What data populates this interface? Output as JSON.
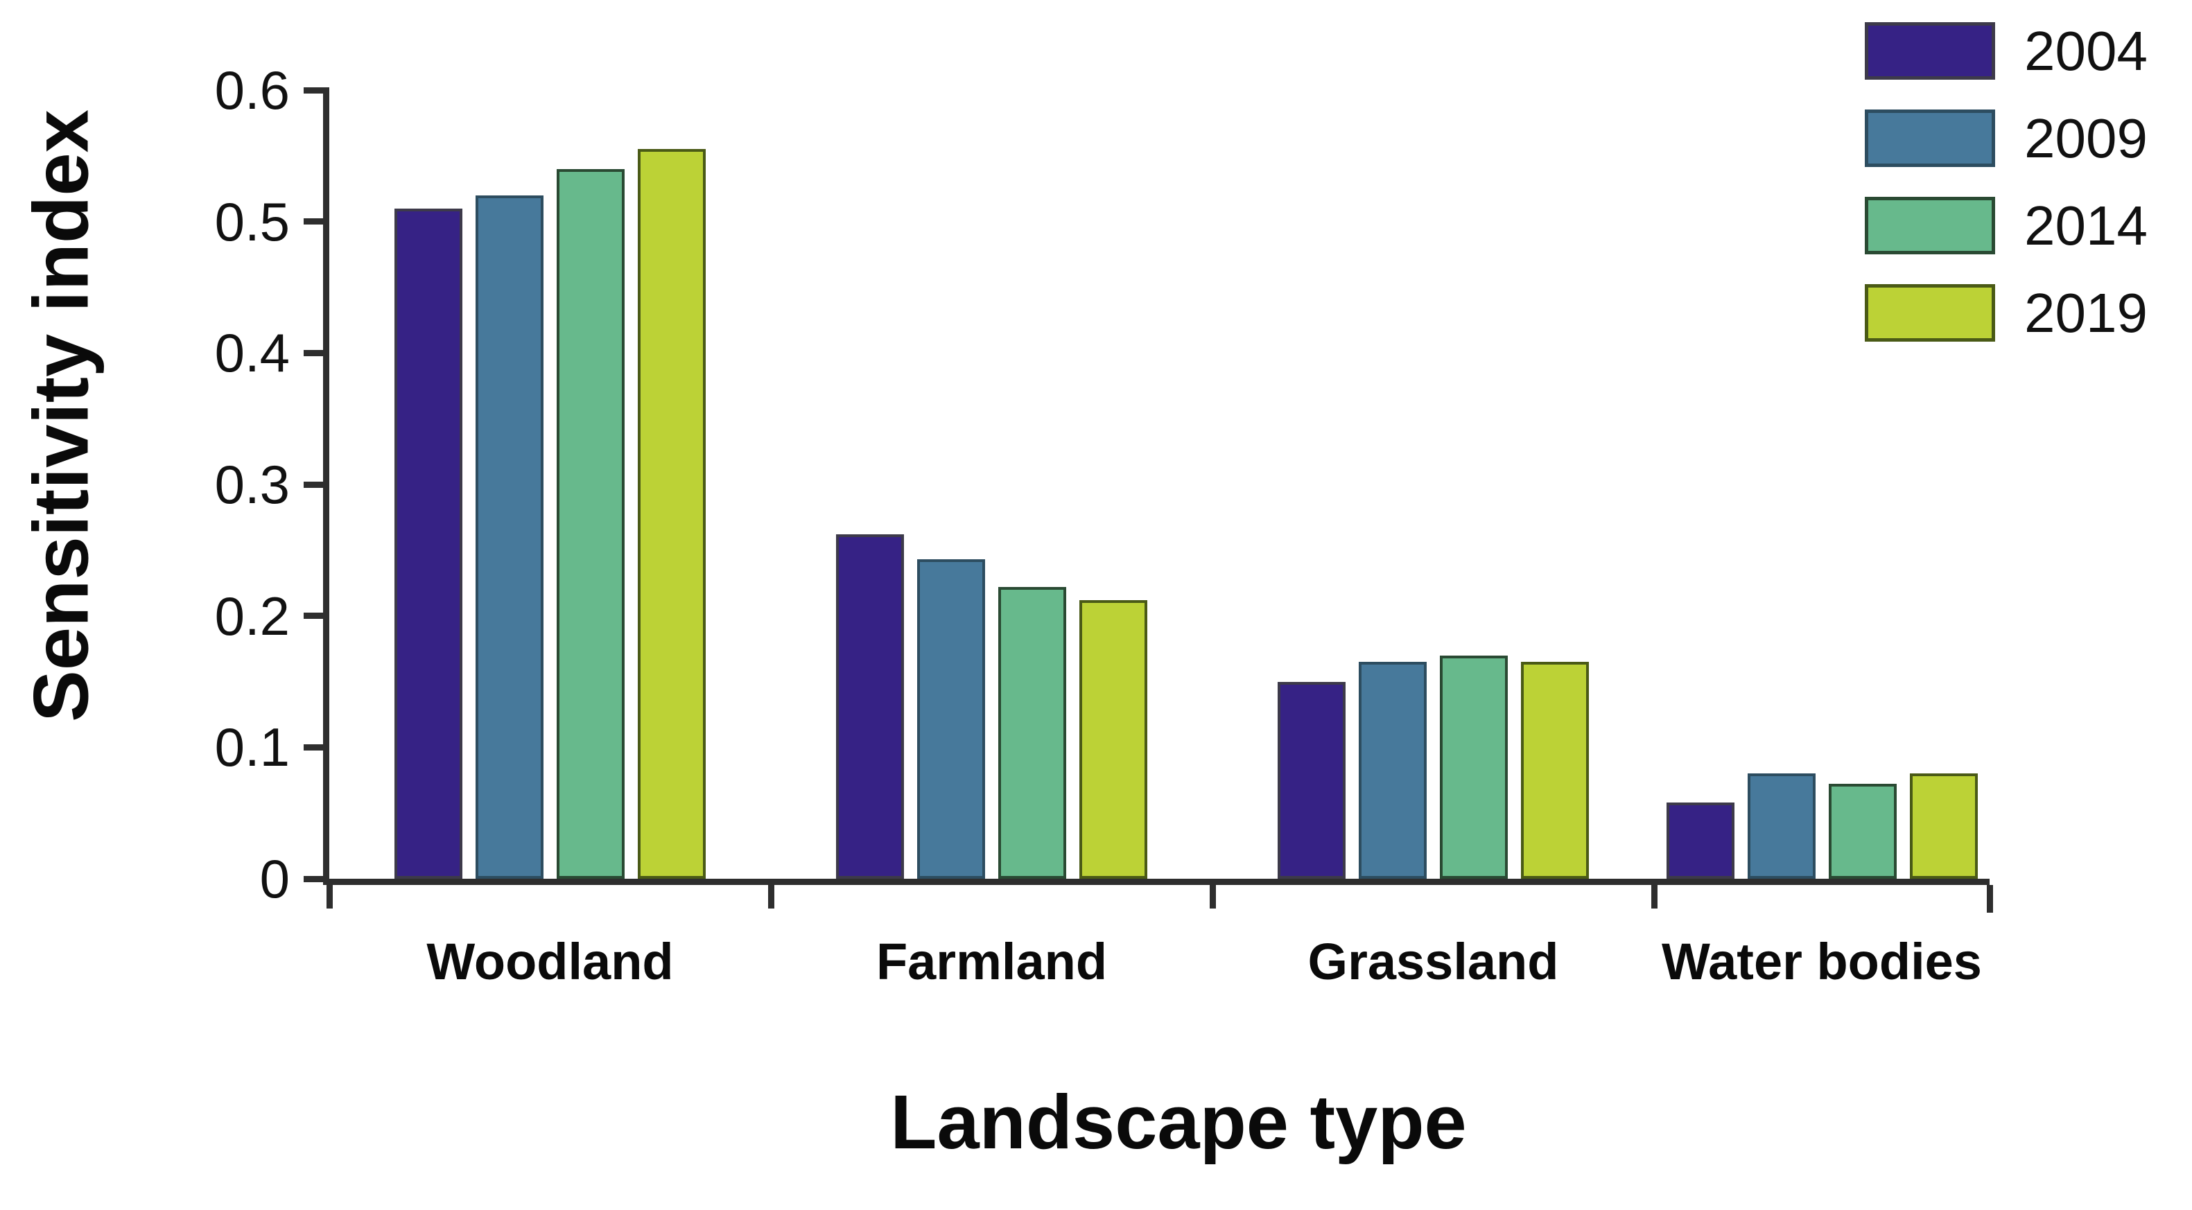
{
  "chart_data": {
    "type": "bar",
    "title": "",
    "xlabel": "Landscape type",
    "ylabel": "Sensitivity index",
    "categories": [
      "Woodland",
      "Farmland",
      "Grassland",
      "Water bodies"
    ],
    "series": [
      {
        "name": "2004",
        "color": "#362285",
        "border_color": "#3d3a4a",
        "values": [
          0.51,
          0.262,
          0.15,
          0.058
        ]
      },
      {
        "name": "2009",
        "color": "#47799b",
        "border_color": "#2d4d60",
        "values": [
          0.52,
          0.243,
          0.165,
          0.08
        ]
      },
      {
        "name": "2014",
        "color": "#67b98c",
        "border_color": "#2a4a33",
        "values": [
          0.54,
          0.222,
          0.17,
          0.072
        ]
      },
      {
        "name": "2019",
        "color": "#bcd236",
        "border_color": "#4a5a16",
        "values": [
          0.555,
          0.212,
          0.165,
          0.08
        ]
      }
    ],
    "ylim": [
      0,
      0.6
    ],
    "yticks": [
      0,
      0.1,
      0.2,
      0.3,
      0.4,
      0.5,
      0.6
    ],
    "ytick_labels": [
      "0",
      "0.1",
      "0.2",
      "0.3",
      "0.4",
      "0.5",
      "0.6"
    ],
    "grid": false,
    "legend_position": "top-right",
    "axis_color": "#2e2e2e",
    "background_color": "#ffffff",
    "text_color": "#0a0a0a"
  }
}
